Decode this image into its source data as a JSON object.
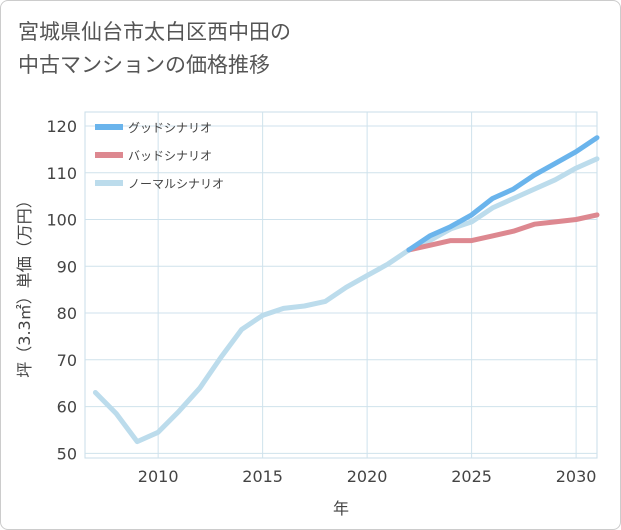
{
  "title_line1": "宮城県仙台市太白区西中田の",
  "title_line2": "中古マンションの価格推移",
  "chart_data": {
    "type": "line",
    "xlabel": "年",
    "ylabel": "坪（3.3㎡）単価（万円）",
    "xlim": [
      2006.5,
      2031
    ],
    "ylim": [
      49,
      123
    ],
    "x_ticks": [
      2010,
      2015,
      2020,
      2025,
      2030
    ],
    "y_ticks": [
      50,
      60,
      70,
      80,
      90,
      100,
      110,
      120
    ],
    "grid": true,
    "legend_position": "top-left",
    "series": [
      {
        "name": "グッドシナリオ",
        "color": "#6ab4ec",
        "x": [
          2022,
          2023,
          2024,
          2025,
          2026,
          2027,
          2028,
          2029,
          2030,
          2031
        ],
        "y": [
          93.5,
          96.5,
          98.5,
          101,
          104.5,
          106.5,
          109.5,
          112,
          114.5,
          117.5
        ]
      },
      {
        "name": "バッドシナリオ",
        "color": "#dd8890",
        "x": [
          2022,
          2023,
          2024,
          2025,
          2026,
          2027,
          2028,
          2029,
          2030,
          2031
        ],
        "y": [
          93.5,
          94.5,
          95.5,
          95.5,
          96.5,
          97.5,
          99,
          99.5,
          100,
          101
        ]
      },
      {
        "name": "ノーマルシナリオ",
        "color": "#bcdcec",
        "x": [
          2007,
          2008,
          2009,
          2010,
          2011,
          2012,
          2013,
          2014,
          2015,
          2016,
          2017,
          2018,
          2019,
          2020,
          2021,
          2022,
          2023,
          2024,
          2025,
          2026,
          2027,
          2028,
          2029,
          2030,
          2031
        ],
        "y": [
          63,
          58.5,
          52.5,
          54.5,
          59,
          64,
          70.5,
          76.5,
          79.5,
          81,
          81.5,
          82.5,
          85.5,
          88,
          90.5,
          93.5,
          95.5,
          98,
          99.5,
          102.5,
          104.5,
          106.5,
          108.5,
          111,
          113
        ]
      }
    ]
  }
}
